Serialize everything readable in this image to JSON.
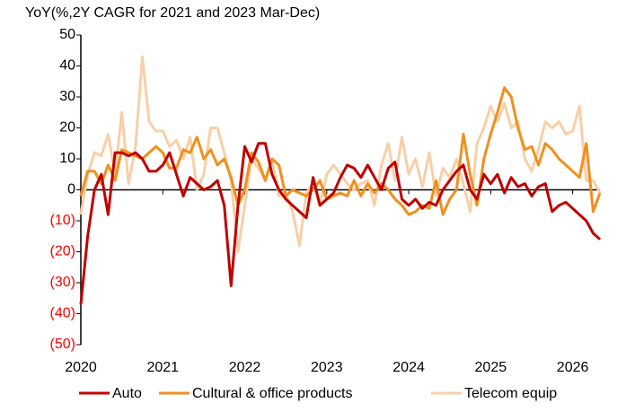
{
  "chart_data": {
    "type": "line",
    "title": "YoY(%,2Y CAGR for 2021 and 2023 Mar-Dec)",
    "x": [
      2020,
      2020.083,
      2020.167,
      2020.25,
      2020.333,
      2020.417,
      2020.5,
      2020.583,
      2020.667,
      2020.75,
      2020.833,
      2020.917,
      2021,
      2021.083,
      2021.167,
      2021.25,
      2021.333,
      2021.417,
      2021.5,
      2021.583,
      2021.667,
      2021.75,
      2021.833,
      2021.917,
      2022,
      2022.083,
      2022.167,
      2022.25,
      2022.333,
      2022.417,
      2022.5,
      2022.583,
      2022.667,
      2022.75,
      2022.833,
      2022.917,
      2023,
      2023.083,
      2023.167,
      2023.25,
      2023.333,
      2023.417,
      2023.5,
      2023.583,
      2023.667,
      2023.75,
      2023.833,
      2023.917,
      2024,
      2024.083,
      2024.167,
      2024.25,
      2024.333,
      2024.417,
      2024.5,
      2024.583,
      2024.667,
      2024.75,
      2024.833,
      2024.917,
      2025,
      2025.083,
      2025.167,
      2025.25,
      2025.333,
      2025.417,
      2025.5,
      2025.583,
      2025.667,
      2025.75,
      2025.833,
      2025.917,
      2026,
      2026.083,
      2026.167,
      2026.25,
      2026.333
    ],
    "series": [
      {
        "name": "Auto",
        "color": "#c00000",
        "values": [
          -37,
          -15,
          0,
          5,
          -8,
          12,
          12,
          11,
          12,
          10,
          6,
          6,
          8,
          12,
          5,
          -2,
          4,
          2,
          0,
          1,
          3,
          -5,
          -31,
          -5,
          14,
          9,
          15,
          15,
          5,
          0,
          -3,
          -5,
          -7,
          -9,
          4,
          -5,
          -3,
          -1,
          4,
          8,
          7,
          4,
          8,
          4,
          0,
          7,
          9,
          -3,
          -5,
          -3,
          -6,
          -4,
          -5,
          0,
          3,
          6,
          8,
          0,
          -3,
          5,
          2,
          5,
          -1,
          4,
          1,
          2,
          -2,
          1,
          2,
          -7,
          -5,
          -4,
          -6,
          -8,
          -10,
          -14,
          -16
        ]
      },
      {
        "name": "Cultural & office products",
        "color": "#f0901e",
        "values": [
          -2,
          6,
          6,
          2,
          8,
          3,
          13,
          12,
          11,
          10,
          12,
          14,
          12,
          7,
          7,
          13,
          12,
          17,
          10,
          13,
          8,
          10,
          4,
          -5,
          0,
          12,
          9,
          3,
          10,
          8,
          -2,
          0,
          -1,
          -2,
          0,
          3,
          -3,
          -2,
          -1,
          -2,
          3,
          -2,
          2,
          -1,
          2,
          0,
          -3,
          -5,
          -8,
          -7,
          -5,
          -6,
          3,
          -8,
          -3,
          0,
          18,
          5,
          -5,
          10,
          18,
          25,
          33,
          30,
          20,
          13,
          14,
          8,
          15,
          13,
          10,
          8,
          6,
          4,
          15,
          -7,
          -1
        ]
      },
      {
        "name": "Telecom equip",
        "color": "#f8cfa8",
        "values": [
          -8,
          5,
          12,
          11,
          18,
          5,
          25,
          2,
          14,
          43,
          22,
          19,
          19,
          14,
          16,
          10,
          17,
          0,
          5,
          20,
          20,
          12,
          3,
          -20,
          -5,
          10,
          7,
          3,
          10,
          -2,
          -1,
          -7,
          -18,
          -1,
          2,
          -5,
          5,
          8,
          5,
          2,
          0,
          2,
          3,
          -5,
          8,
          15,
          3,
          17,
          5,
          10,
          1,
          12,
          -2,
          7,
          4,
          10,
          2,
          -7,
          15,
          20,
          27,
          22,
          28,
          20,
          22,
          10,
          6,
          13,
          22,
          20,
          22,
          18,
          19,
          27,
          3,
          3,
          -1
        ]
      }
    ],
    "xlim": [
      2020,
      2026.333
    ],
    "xticks": [
      2020,
      2021,
      2022,
      2023,
      2024,
      2025,
      2026
    ],
    "ylim": [
      -50,
      50
    ],
    "yticks": [
      {
        "value": -50,
        "label": "(50)"
      },
      {
        "value": -40,
        "label": "(40)"
      },
      {
        "value": -30,
        "label": "(30)"
      },
      {
        "value": -20,
        "label": "(20)"
      },
      {
        "value": -10,
        "label": "(10)"
      },
      0,
      10,
      20,
      30,
      40,
      50
    ],
    "negative_tick_color": "#ff0000",
    "grid": false,
    "legend": "bottom"
  }
}
